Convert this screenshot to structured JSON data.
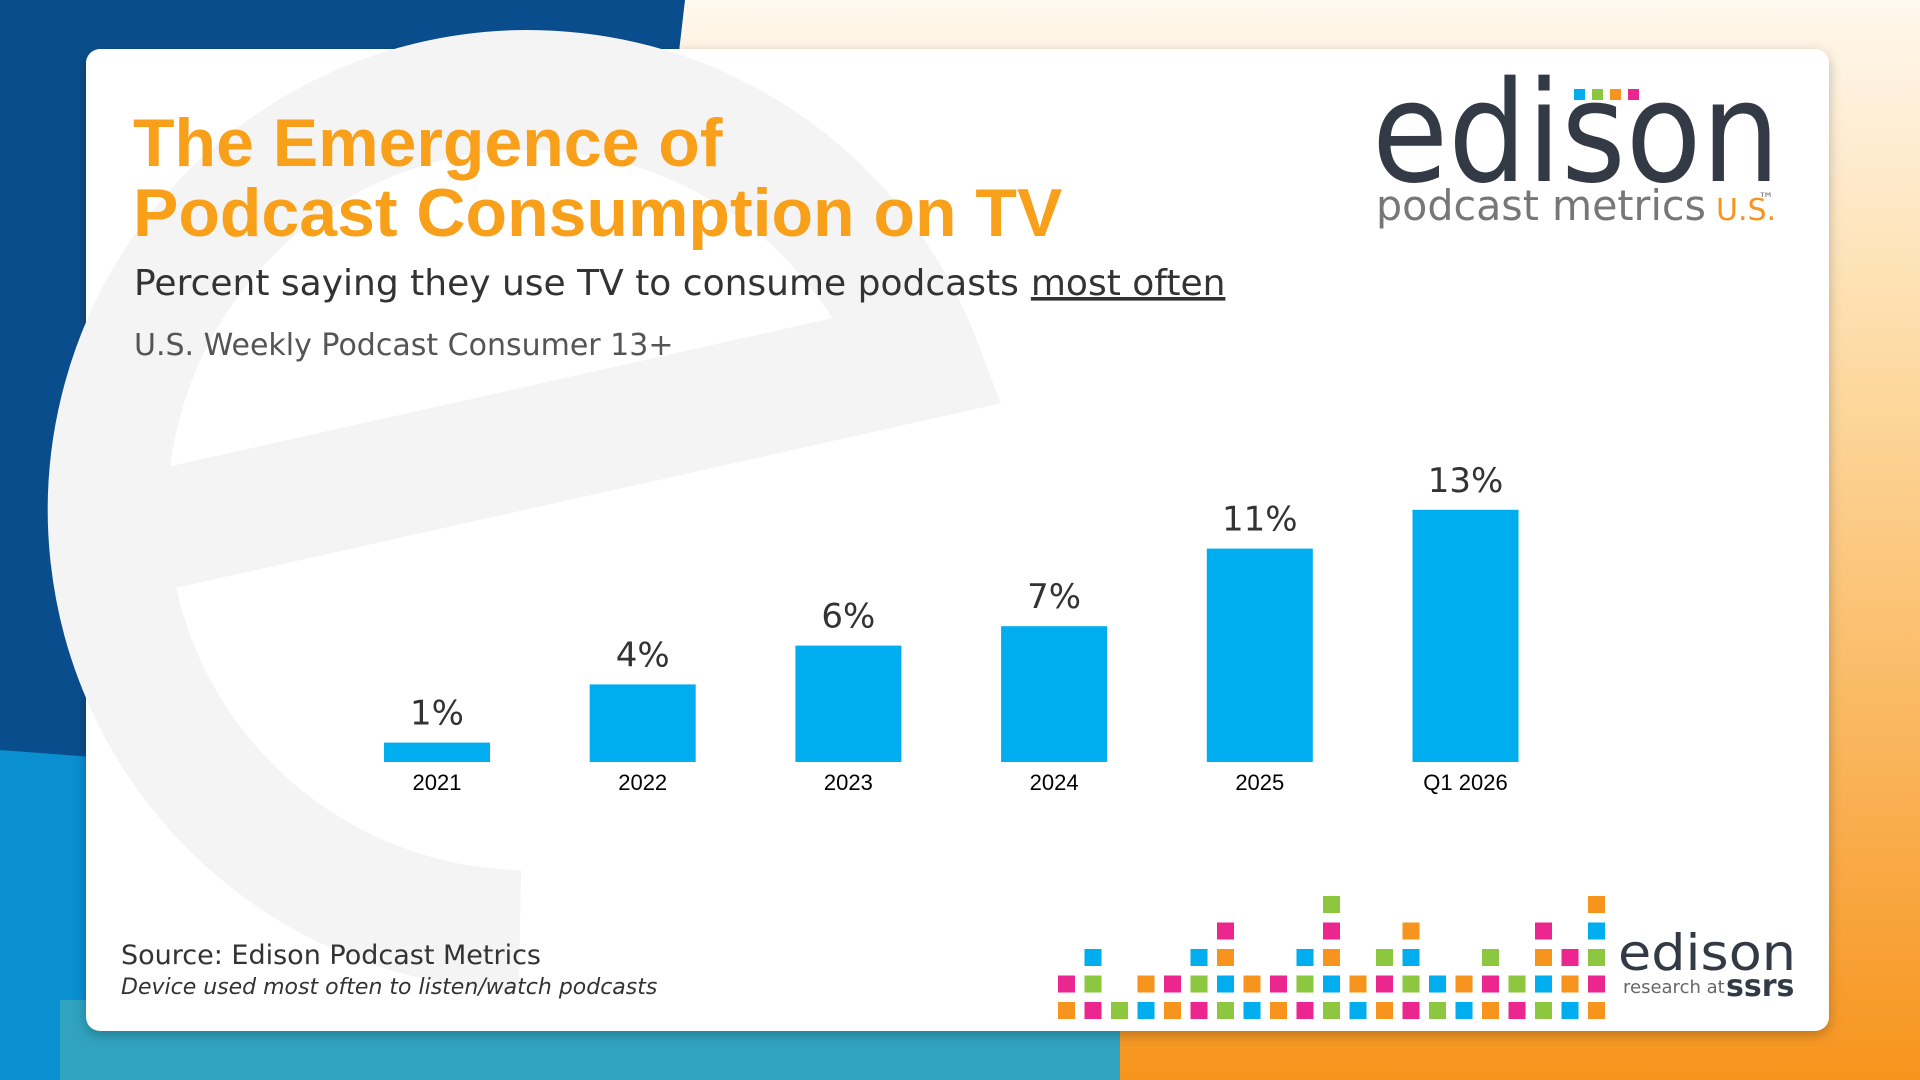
{
  "chart_data": {
    "type": "bar",
    "title": [
      "The Emergence of",
      "Podcast Consumption on TV"
    ],
    "subtitle": "Percent saying they use TV to consume podcasts",
    "subtitle_emphasis": "most often",
    "base": "U.S. Weekly Podcast Consumer 13+",
    "categories": [
      "2021",
      "2022",
      "2023",
      "2024",
      "2025",
      "Q1 2026"
    ],
    "values": [
      1,
      4,
      6,
      7,
      11,
      13
    ],
    "value_labels": [
      "1%",
      "4%",
      "6%",
      "7%",
      "11%",
      "13%"
    ],
    "color": "#00aeef"
  },
  "logo": {
    "name": "edison",
    "product": "podcast metrics",
    "region": "U.S.",
    "mark": "™"
  },
  "footer": {
    "source": "Source: Edison Podcast Metrics",
    "note": "Device used most often to listen/watch podcasts",
    "brand": "edison",
    "tagline": "research at",
    "parent": "ssrs"
  }
}
